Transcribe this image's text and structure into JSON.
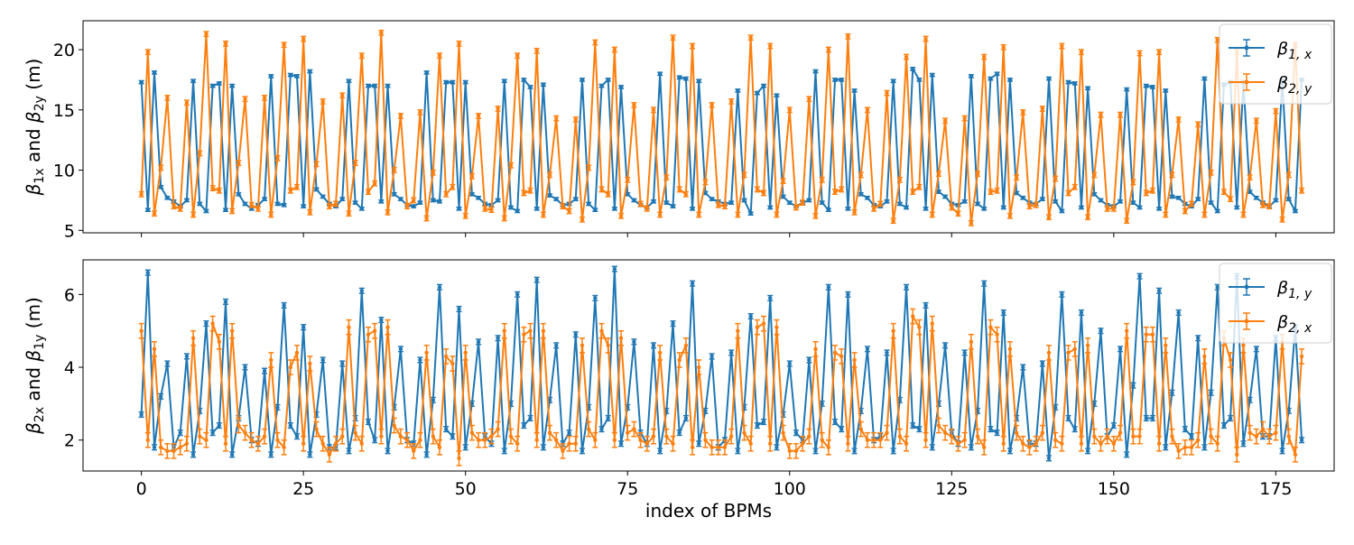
{
  "colors": {
    "blue": "#1f77b4",
    "orange": "#ff7f0e"
  },
  "chart_data": [
    {
      "type": "line",
      "xlim": [
        -9,
        184
      ],
      "ylim": [
        4.8,
        22.4
      ],
      "xticks": [
        0,
        25,
        50,
        75,
        100,
        125,
        150,
        175
      ],
      "yticks": [
        5,
        10,
        15,
        20
      ],
      "ytick_labels": [
        "5",
        "10",
        "15",
        "20"
      ],
      "show_x_tick_labels": false,
      "xlabel": "",
      "ylabel_parts": {
        "b1": "β",
        "s1": "1x",
        "mid": " and ",
        "b2": "β",
        "s2": "2y",
        "unit": " (m)"
      },
      "legend_position": "top-right",
      "series": [
        {
          "label_base": "β",
          "label_sub": "1, x",
          "color": "#1f77b4",
          "x_start": 0,
          "x_step": 1,
          "error": 0.12,
          "values": [
            17.3,
            6.7,
            18.1,
            8.6,
            7.7,
            7.4,
            7,
            7.5,
            17.4,
            7.2,
            6.6,
            17,
            17.2,
            6.7,
            17,
            8,
            7.2,
            6.8,
            7.1,
            7.6,
            17.8,
            7.2,
            7.1,
            17.9,
            17.8,
            7,
            18.2,
            8.4,
            7.8,
            7.2,
            7,
            7.6,
            17.4,
            7.3,
            6.8,
            17,
            17,
            7.4,
            17,
            8,
            7.6,
            7.1,
            7,
            7.3,
            18.1,
            7.5,
            7.4,
            17.3,
            17.3,
            6.8,
            17.3,
            8,
            7.7,
            7.2,
            7.1,
            7.5,
            17.4,
            6.9,
            6.6,
            17.5,
            16.9,
            6.8,
            17.1,
            7.9,
            7.6,
            7.1,
            7.2,
            7.6,
            17.5,
            7.2,
            6.7,
            17,
            17.5,
            6.8,
            16.9,
            8,
            7.5,
            7.1,
            6.9,
            7.4,
            18,
            7.3,
            7,
            17.7,
            17.6,
            6.8,
            17.4,
            8.1,
            7.6,
            7.4,
            7.2,
            7.3,
            16.6,
            7.5,
            6.4,
            16.4,
            17,
            6.9,
            16.2,
            7.8,
            7.3,
            7,
            7.3,
            7.5,
            18.2,
            7.3,
            6.7,
            17.5,
            17.5,
            6.8,
            16.6,
            8,
            7.7,
            7.1,
            7,
            7.4,
            17.4,
            7.2,
            6.9,
            18.4,
            17.5,
            6.8,
            17.9,
            8.2,
            7.8,
            7.2,
            7.1,
            7.4,
            17.8,
            7.2,
            6.8,
            17.6,
            18,
            6.9,
            17.5,
            8.1,
            7.7,
            7.3,
            7.2,
            7.6,
            17.6,
            7.4,
            6.6,
            17.3,
            17.2,
            6.9,
            16.8,
            8,
            7.5,
            7.1,
            7,
            7.4,
            16.7,
            7.3,
            6.9,
            17,
            16.9,
            6.8,
            16.6,
            7.8,
            7.7,
            7.2,
            7,
            7.6,
            17.6,
            7.3,
            6.6,
            17.1,
            17.3,
            6.9,
            17.3,
            8.2,
            7.7,
            7.3,
            7,
            7.5,
            17.4,
            7.6,
            6.6,
            17.5
          ]
        },
        {
          "label_base": "β",
          "label_sub": "2, y",
          "color": "#ff7f0e",
          "x_start": 0,
          "x_step": 1,
          "error": 0.2,
          "values": [
            8,
            19.8,
            6.4,
            10.2,
            16,
            7,
            6.8,
            15.6,
            6.3,
            11.4,
            21.3,
            8.5,
            8.3,
            20.5,
            6.6,
            10.6,
            15.9,
            7.1,
            6.8,
            16,
            6.3,
            11,
            20.4,
            8.3,
            8.6,
            20.9,
            6.5,
            10.5,
            15.7,
            7,
            7.2,
            16.2,
            6.4,
            10.6,
            19.5,
            8.2,
            8.9,
            21.4,
            6.5,
            10,
            14.5,
            7,
            7.5,
            14.8,
            6,
            9.8,
            19.5,
            8,
            8.6,
            20.5,
            6.2,
            9.5,
            14.5,
            6.8,
            6.7,
            15.1,
            6,
            10.4,
            19.5,
            8.1,
            8.3,
            19.9,
            6.3,
            9.6,
            14.3,
            7,
            6.6,
            14.2,
            5.9,
            10.2,
            20.6,
            8.4,
            8,
            20,
            6.2,
            9.2,
            15.4,
            7.2,
            6.8,
            15,
            6.3,
            9.4,
            21,
            8.4,
            8,
            20.3,
            6.3,
            9,
            15.4,
            7.1,
            7,
            15.7,
            6.3,
            9.6,
            21,
            8.4,
            8.1,
            20.3,
            6.3,
            9.1,
            15,
            6.9,
            7.3,
            15.9,
            6.2,
            9.2,
            20,
            8.2,
            8.4,
            21.1,
            6.5,
            9.6,
            15,
            6.8,
            7.2,
            16.4,
            5.8,
            9.2,
            19.4,
            8.2,
            8.6,
            20.9,
            6.3,
            9.7,
            14.1,
            6.9,
            6.4,
            14.3,
            5.6,
            9.7,
            19.4,
            8.2,
            8.3,
            20.2,
            6.2,
            9.4,
            14.8,
            7,
            7.1,
            15.1,
            6.1,
            9.3,
            20.3,
            8.1,
            8.6,
            19.8,
            6.1,
            9.6,
            14.6,
            6.8,
            6.8,
            14.6,
            5.8,
            9,
            19.7,
            8.1,
            8.3,
            19.8,
            6.3,
            9.6,
            14.2,
            6.6,
            7.2,
            13.8,
            6.3,
            9.8,
            20.8,
            8.2,
            7.6,
            19.8,
            6.3,
            9.4,
            14.1,
            7.1,
            7,
            14.9,
            5.9,
            9.6,
            20.4,
            8.3
          ]
        }
      ]
    },
    {
      "type": "line",
      "xlim": [
        -9,
        184
      ],
      "ylim": [
        1.15,
        6.95
      ],
      "xticks": [
        0,
        25,
        50,
        75,
        100,
        125,
        150,
        175
      ],
      "xtick_labels": [
        "0",
        "25",
        "50",
        "75",
        "100",
        "125",
        "150",
        "175"
      ],
      "yticks": [
        2,
        4,
        6
      ],
      "ytick_labels": [
        "2",
        "4",
        "6"
      ],
      "show_x_tick_labels": true,
      "xlabel": "index of BPMs",
      "ylabel_parts": {
        "b1": "β",
        "s1": "2x",
        "mid": " and ",
        "b2": "β",
        "s2": "1y",
        "unit": " (m)"
      },
      "legend_position": "top-right",
      "series": [
        {
          "label_base": "β",
          "label_sub": "1, y",
          "color": "#1f77b4",
          "x_start": 0,
          "x_step": 1,
          "error": 0.07,
          "values": [
            2.7,
            6.6,
            1.8,
            3.2,
            4.1,
            1.8,
            2.2,
            4.3,
            1.6,
            2.8,
            5.2,
            2.2,
            2.4,
            5.8,
            1.6,
            2.6,
            4,
            2,
            1.9,
            3.9,
            1.6,
            2.9,
            5.7,
            2.4,
            2.1,
            5.1,
            1.6,
            2.7,
            4.2,
            1.8,
            1.8,
            4.1,
            1.7,
            2.6,
            6.1,
            2.5,
            2,
            5.3,
            1.7,
            2.9,
            4.5,
            2,
            1.9,
            4.2,
            1.6,
            3.1,
            6.2,
            2.3,
            2.1,
            5.6,
            1.8,
            3,
            4.7,
            2.1,
            1.9,
            4.8,
            1.7,
            3,
            6,
            2.4,
            2.6,
            6.4,
            1.8,
            3.1,
            4.6,
            1.9,
            2.2,
            4.9,
            1.7,
            2.9,
            5.9,
            2.3,
            2.6,
            6.7,
            1.9,
            2.9,
            4.7,
            2.2,
            1.9,
            4.6,
            1.7,
            2.8,
            5.2,
            2.2,
            2.6,
            6.3,
            1.9,
            2.8,
            4.3,
            1.8,
            2,
            4.4,
            1.7,
            2.9,
            5.4,
            2.4,
            2.5,
            5.9,
            1.8,
            2.7,
            4.1,
            2.2,
            2,
            4.2,
            1.7,
            3,
            6.2,
            2.5,
            2.3,
            6,
            1.7,
            2.8,
            4.5,
            2,
            2.1,
            4.4,
            1.7,
            3.1,
            6.2,
            2.4,
            2.3,
            5.7,
            1.8,
            3,
            4.6,
            2.2,
            1.9,
            4.4,
            1.8,
            2.8,
            6.3,
            2.3,
            2.2,
            5.5,
            1.7,
            2.6,
            4,
            1.9,
            1.9,
            4.1,
            1.5,
            2.9,
            6,
            2.6,
            2.3,
            5.5,
            1.7,
            3,
            5,
            2.1,
            2.4,
            4.5,
            1.6,
            3.5,
            6.5,
            2.6,
            2.6,
            6.1,
            1.8,
            3.3,
            5.5,
            2.3,
            2.1,
            4.8,
            1.8,
            3.3,
            6.2,
            2.4,
            2.6,
            6.5,
            1.9,
            3.1,
            4.5,
            2.1,
            2.1,
            4.8,
            1.7,
            2.8,
            5.1,
            2
          ]
        },
        {
          "label_base": "β",
          "label_sub": "2, x",
          "color": "#ff7f0e",
          "x_start": 0,
          "x_step": 1,
          "error": 0.2,
          "values": [
            5,
            2,
            4.5,
            1.8,
            1.7,
            1.7,
            1.8,
            1.9,
            4.8,
            2.1,
            2,
            5.2,
            4.7,
            1.9,
            5,
            2.4,
            2.2,
            2,
            1.9,
            2.1,
            4.2,
            2,
            1.8,
            4,
            4.4,
            1.9,
            4.1,
            2.3,
            1.9,
            1.6,
            1.9,
            2.1,
            5.1,
            2.2,
            1.9,
            4.9,
            5,
            2.1,
            5.1,
            2.4,
            2.1,
            2,
            1.7,
            2,
            4.4,
            2.1,
            1.8,
            4.3,
            4.1,
            1.5,
            4.4,
            2.2,
            2,
            2,
            2.1,
            2.3,
            5,
            2.1,
            1.9,
            4.9,
            5,
            2,
            5,
            2.2,
            2,
            1.7,
            1.9,
            1.9,
            4.6,
            2.3,
            2,
            5,
            4.6,
            2,
            4.8,
            2.2,
            2.3,
            2,
            1.9,
            2.1,
            4.4,
            2.1,
            1.9,
            4.2,
            4.6,
            1.8,
            4,
            2,
            1.8,
            1.8,
            1.8,
            2.1,
            5,
            2.2,
            1.9,
            5.1,
            5.2,
            1.9,
            5.1,
            2.2,
            1.7,
            1.7,
            1.9,
            2.1,
            4.5,
            2,
            1.8,
            4.4,
            4.3,
            1.9,
            4.2,
            2.3,
            2,
            2,
            2,
            2.2,
            5,
            2.1,
            1.9,
            5.4,
            5.1,
            2,
            5.2,
            2.4,
            2.2,
            2.1,
            1.9,
            2,
            4.7,
            2.1,
            1.8,
            5.1,
            4.9,
            1.9,
            4.5,
            2.2,
            1.9,
            1.8,
            1.9,
            2.2,
            4.4,
            2,
            1.9,
            4.4,
            4.5,
            1.9,
            4.6,
            2.1,
            1.9,
            2.1,
            1.9,
            2.2,
            5,
            2.1,
            2.1,
            4.9,
            4.9,
            1.9,
            4.6,
            2.1,
            1.7,
            1.8,
            1.8,
            2,
            4.3,
            2.1,
            1.9,
            4.8,
            4.2,
            1.6,
            4.6,
            2.2,
            2.1,
            2.3,
            2.1,
            2.2,
            4.7,
            2.1,
            1.6,
            4.3
          ]
        }
      ]
    }
  ]
}
